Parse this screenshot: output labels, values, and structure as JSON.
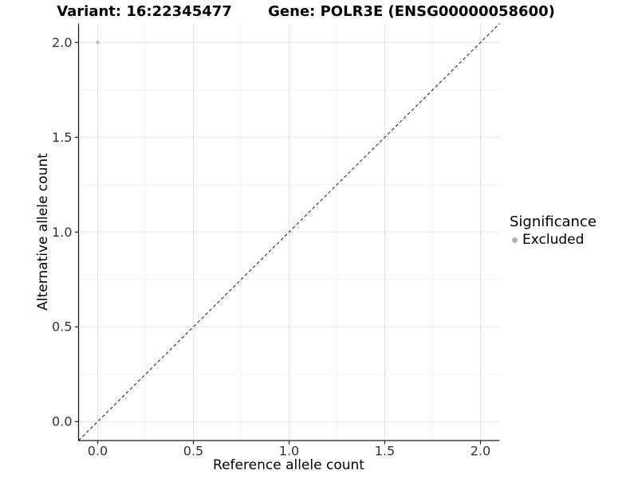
{
  "titles": {
    "left": "Variant: 16:22345477",
    "right": "Gene: POLR3E (ENSG00000058600)"
  },
  "chart_data": {
    "type": "scatter",
    "title": "Variant: 16:22345477 | Gene: POLR3E (ENSG00000058600)",
    "xlabel": "Reference allele count",
    "ylabel": "Alternative allele count",
    "xlim": [
      -0.1,
      2.1
    ],
    "ylim": [
      -0.1,
      2.1
    ],
    "x_ticks": [
      0,
      0.5,
      1,
      1.5,
      2
    ],
    "x_tick_labels": [
      "0.0",
      "0.5",
      "1.0",
      "1.5",
      "2.0"
    ],
    "y_ticks": [
      0,
      0.5,
      1,
      1.5,
      2
    ],
    "y_tick_labels": [
      "0.0",
      "0.5",
      "1.0",
      "1.5",
      "2.0"
    ],
    "minor_ticks_x": [
      0.25,
      0.75,
      1.25,
      1.75
    ],
    "minor_ticks_y": [
      0.25,
      0.75,
      1.25,
      1.75
    ],
    "grid": "on",
    "legend_position": "right",
    "series": [
      {
        "name": "Excluded",
        "color": "#c2c2c2",
        "points": [
          {
            "x": 0.0,
            "y": 2.0
          }
        ]
      }
    ],
    "identity_line": {
      "slope": 1,
      "intercept": 0,
      "style": "dashed",
      "color": "#1a1a1a"
    },
    "legend": {
      "title": "Significance",
      "items": [
        {
          "label": "Excluded",
          "color": "#b0b0b0"
        }
      ]
    }
  },
  "colors": {
    "grid_major": "#e3e3e3",
    "grid_minor": "#f0f0f0",
    "axis_line": "#1f1f1f",
    "tick_mark": "#1f1f1f",
    "tick_label": "#333333",
    "point": "#c2c2c2",
    "legend_dot": "#b0b0b0",
    "diagonal": "#1a1a1a"
  }
}
